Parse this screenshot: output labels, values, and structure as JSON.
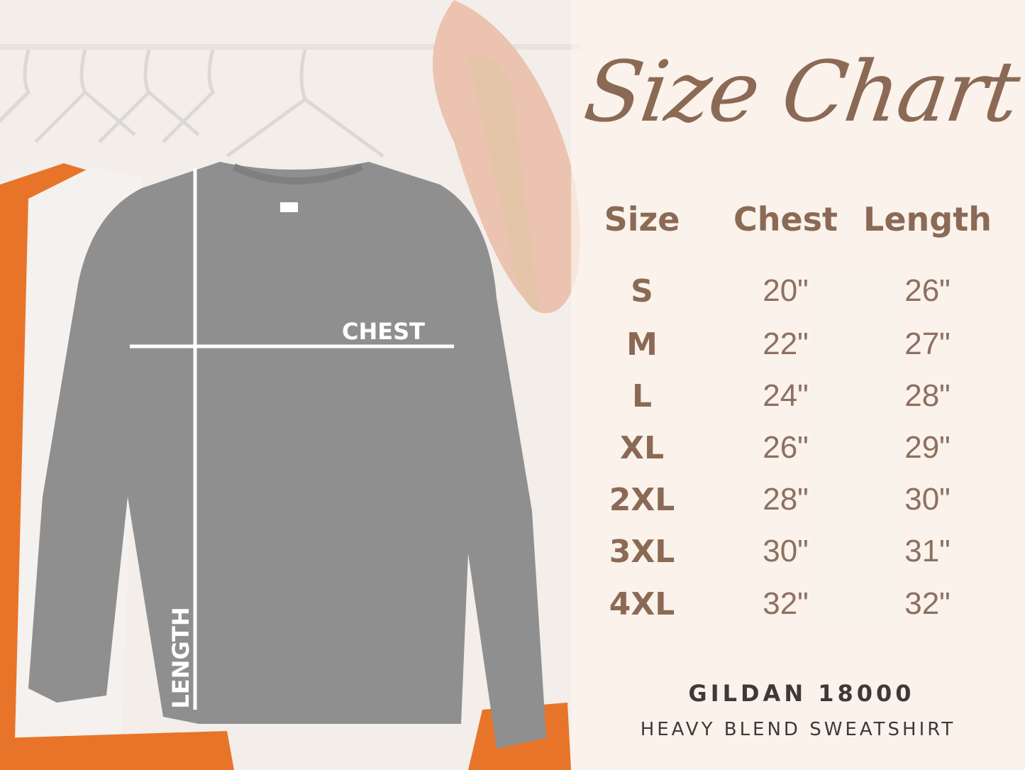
{
  "chart": {
    "title": "Size Chart",
    "headers": [
      "Size",
      "Chest",
      "Length"
    ],
    "rows": [
      {
        "size": "S",
        "chest": "20\"",
        "length": "26\""
      },
      {
        "size": "M",
        "chest": "22\"",
        "length": "27\""
      },
      {
        "size": "L",
        "chest": "24\"",
        "length": "28\""
      },
      {
        "size": "XL",
        "chest": "26\"",
        "length": "29\""
      },
      {
        "size": "2XL",
        "chest": "28\"",
        "length": "30\""
      },
      {
        "size": "3XL",
        "chest": "30\"",
        "length": "31\""
      },
      {
        "size": "4XL",
        "chest": "32\"",
        "length": "32\""
      }
    ]
  },
  "garment": {
    "chest_label": "CHEST",
    "length_label": "LENGTH"
  },
  "footer": {
    "brand": "GILDAN 18000",
    "model": "HEAVY BLEND SWEATSHIRT"
  },
  "colors": {
    "accent": "#8b6a55",
    "sweatshirt": "#8f8f8f",
    "footer_text": "#3d3a38"
  }
}
